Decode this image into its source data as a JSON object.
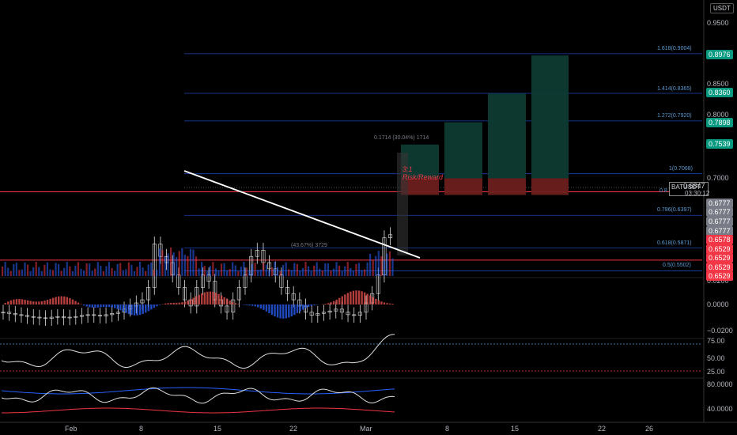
{
  "currency": "USDT",
  "symbol": "BATUSDT",
  "last_price": "0.6847",
  "countdown": "03:30:12",
  "price_axis_labels": [
    "0.9500",
    "0.8500",
    "0.8000",
    "0.7000",
    "0.0200",
    "0.0000",
    "−0.0200",
    "75.00",
    "50.00",
    "25.00",
    "80.0000",
    "40.0000"
  ],
  "price_tags": {
    "green": [
      "0.8976",
      "0.8360",
      "0.7898",
      "0.7539"
    ],
    "gray": [
      "0.6777",
      "0.6777",
      "0.6777",
      "0.6777"
    ],
    "red": [
      "0.6578",
      "0.6529",
      "0.6529",
      "0.6529",
      "0.6529"
    ]
  },
  "time_labels": [
    "Feb",
    "8",
    "15",
    "22",
    "Mar",
    "8",
    "15",
    "22",
    "26"
  ],
  "fib_labels": [
    "1.618(0.9004)",
    "1.414(0.8365)",
    "1.272(0.7920)",
    "1(0.7068)",
    "0.8",
    "0.786(0.6397)",
    "0.618(0.5871)",
    "0.5(0.5502)"
  ],
  "annotations": {
    "risk_reward": [
      "3:1",
      "Risk/Reward"
    ],
    "measure": "0.1714 (30.04%) 1714",
    "pattern_measure": "(43.67%) 3729"
  },
  "colors": {
    "background": "#000000",
    "green_zone": "#0e3b33",
    "red_zone": "#6e1f1f",
    "fib_line": "#2962ff",
    "up": "#26a69a",
    "down": "#ef5350",
    "tag_green": "#089981",
    "tag_red": "#f23645",
    "tag_gray": "#787b86"
  },
  "chart_data": {
    "type": "line",
    "title": "",
    "note": "Candlestick price chart with descending trendline, Fibonacci extension levels, target boxes and three oscillator panes",
    "price_ylim": [
      0.5,
      0.96
    ],
    "price_close_series": [
      0.56,
      0.558,
      0.556,
      0.555,
      0.553,
      0.552,
      0.551,
      0.55,
      0.552,
      0.553,
      0.551,
      0.552,
      0.553,
      0.555,
      0.556,
      0.555,
      0.554,
      0.556,
      0.558,
      0.56,
      0.565,
      0.57,
      0.575,
      0.58,
      0.6,
      0.67,
      0.65,
      0.64,
      0.62,
      0.6,
      0.58,
      0.57,
      0.6,
      0.62,
      0.61,
      0.58,
      0.57,
      0.56,
      0.58,
      0.6,
      0.62,
      0.65,
      0.66,
      0.64,
      0.63,
      0.62,
      0.6,
      0.59,
      0.58,
      0.57,
      0.56,
      0.555,
      0.558,
      0.56,
      0.562,
      0.565,
      0.56,
      0.556,
      0.555,
      0.56,
      0.575,
      0.59,
      0.62,
      0.68,
      0.685
    ],
    "targets": [
      0.7539,
      0.7898,
      0.836,
      0.8976
    ],
    "entry": 0.6777,
    "stop": 0.6529,
    "fib_levels": [
      {
        "ratio": "1.618",
        "price": 0.9004
      },
      {
        "ratio": "1.414",
        "price": 0.8365
      },
      {
        "ratio": "1.272",
        "price": 0.792
      },
      {
        "ratio": "1",
        "price": 0.7068
      },
      {
        "ratio": "0.786",
        "price": 0.6397
      },
      {
        "ratio": "0.618",
        "price": 0.5871
      },
      {
        "ratio": "0.5",
        "price": 0.5502
      }
    ],
    "oscillator1_ylim": [
      -0.02,
      0.02
    ],
    "oscillator2_ylim": [
      25,
      75
    ],
    "oscillator3_ylim": [
      40,
      80
    ]
  }
}
